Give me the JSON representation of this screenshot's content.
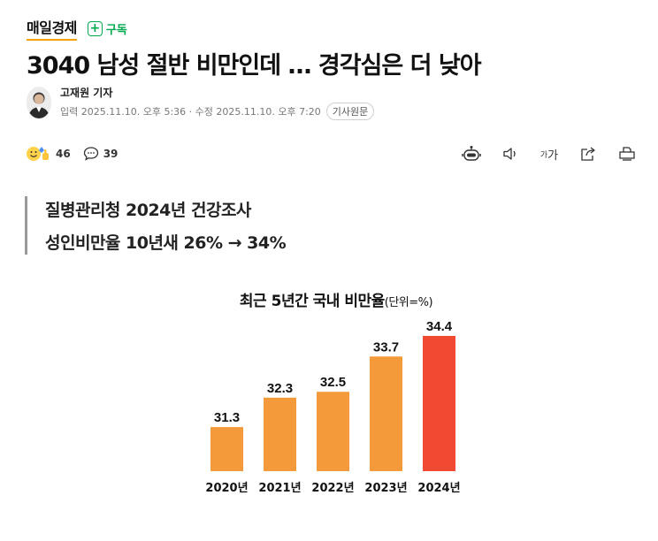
{
  "press": {
    "name": "매일경제",
    "subscribe_label": "구독"
  },
  "article": {
    "headline": "3040 남성 절반 비만인데 … 경각심은 더 낮아",
    "reporter": "고재원 기자",
    "dates": "입력 2025.11.10. 오후 5:36 · 수정 2025.11.10. 오후 7:20",
    "original_button": "기사원문",
    "subheadline": [
      "질병관리청 2024년 건강조사",
      "성인비만율 10년새 26% → 34%"
    ]
  },
  "toolbar": {
    "reaction_count": "46",
    "comment_count": "39",
    "font_size_label": "가",
    "icons": [
      "summary-bot-icon",
      "speaker-icon",
      "font-size-icon",
      "share-icon",
      "print-icon"
    ]
  },
  "colors": {
    "accent": "#03a94f",
    "press_underline": "#f5a100",
    "bar": "#f59a3a",
    "bar_highlight": "#f04a33"
  },
  "chart_data": {
    "type": "bar",
    "title": "최근 5년간 국내 비만율",
    "unit_label": "(단위=%)",
    "categories": [
      "2020년",
      "2021년",
      "2022년",
      "2023년",
      "2024년"
    ],
    "values": [
      31.3,
      32.3,
      32.5,
      33.7,
      34.4
    ],
    "value_labels": [
      "31.3",
      "32.3",
      "32.5",
      "33.7",
      "34.4"
    ],
    "highlight_index": 4,
    "ylim": [
      29.8,
      34.4
    ],
    "grid": false,
    "legend": "none"
  }
}
